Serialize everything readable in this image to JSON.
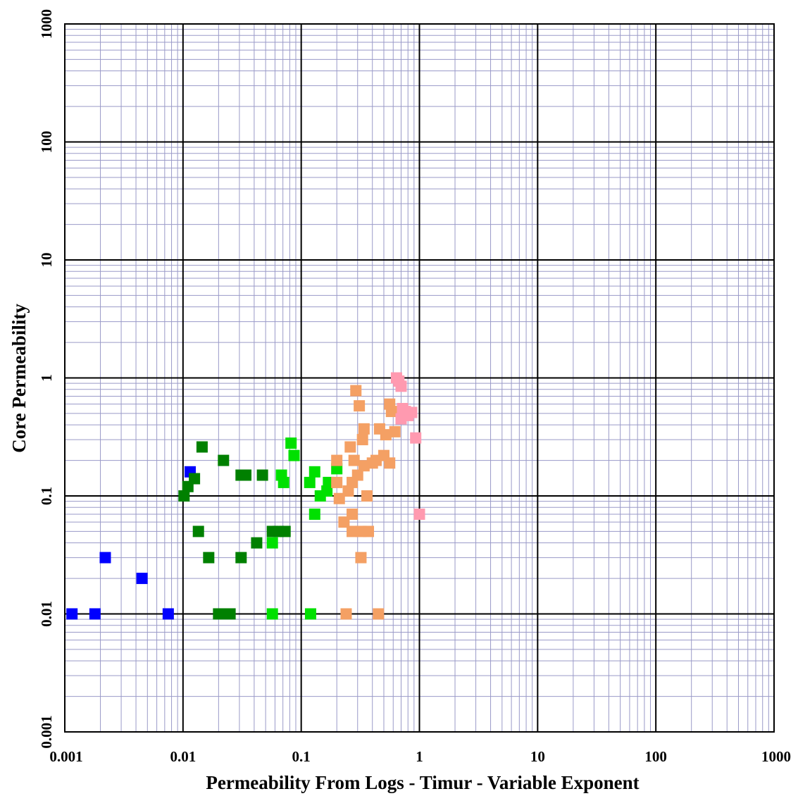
{
  "chart_data": {
    "type": "scatter",
    "title": "",
    "xlabel": "Permeability From Logs  -   Timur  - Variable Exponent",
    "ylabel": "Core Permeability",
    "x_scale": "log",
    "y_scale": "log",
    "xlim": [
      0.001,
      1000
    ],
    "ylim": [
      0.001,
      1000
    ],
    "grid": true,
    "x_ticks": [
      "0.001",
      "0.01",
      "0.1",
      "1",
      "10",
      "100",
      "1000"
    ],
    "y_ticks": [
      "0.001",
      "0.01",
      "0.1",
      "1",
      "10",
      "100",
      "1000"
    ],
    "series": [
      {
        "color": "#0000ff",
        "points": [
          [
            0.00115,
            0.01
          ],
          [
            0.0018,
            0.01
          ],
          [
            0.0022,
            0.03
          ],
          [
            0.0045,
            0.02
          ],
          [
            0.0075,
            0.01
          ],
          [
            0.0115,
            0.16
          ]
        ]
      },
      {
        "color": "#008000",
        "points": [
          [
            0.0102,
            0.1
          ],
          [
            0.011,
            0.12
          ],
          [
            0.0125,
            0.14
          ],
          [
            0.0135,
            0.05
          ],
          [
            0.0145,
            0.26
          ],
          [
            0.0165,
            0.03
          ],
          [
            0.02,
            0.01
          ],
          [
            0.022,
            0.01
          ],
          [
            0.025,
            0.01
          ],
          [
            0.022,
            0.2
          ],
          [
            0.031,
            0.15
          ],
          [
            0.034,
            0.15
          ],
          [
            0.031,
            0.03
          ],
          [
            0.047,
            0.15
          ],
          [
            0.042,
            0.04
          ],
          [
            0.057,
            0.05
          ],
          [
            0.064,
            0.05
          ],
          [
            0.073,
            0.05
          ]
        ]
      },
      {
        "color": "#00e000",
        "points": [
          [
            0.057,
            0.01
          ],
          [
            0.057,
            0.04
          ],
          [
            0.068,
            0.15
          ],
          [
            0.071,
            0.13
          ],
          [
            0.082,
            0.28
          ],
          [
            0.087,
            0.22
          ],
          [
            0.118,
            0.13
          ],
          [
            0.12,
            0.01
          ],
          [
            0.13,
            0.16
          ],
          [
            0.13,
            0.07
          ],
          [
            0.145,
            0.1
          ],
          [
            0.165,
            0.11
          ],
          [
            0.17,
            0.13
          ],
          [
            0.2,
            0.17
          ]
        ]
      },
      {
        "color": "#f4a064",
        "points": [
          [
            0.2,
            0.2
          ],
          [
            0.2,
            0.13
          ],
          [
            0.21,
            0.095
          ],
          [
            0.23,
            0.06
          ],
          [
            0.24,
            0.01
          ],
          [
            0.25,
            0.11
          ],
          [
            0.26,
            0.26
          ],
          [
            0.27,
            0.13
          ],
          [
            0.27,
            0.07
          ],
          [
            0.27,
            0.05
          ],
          [
            0.28,
            0.2
          ],
          [
            0.29,
            0.78
          ],
          [
            0.3,
            0.15
          ],
          [
            0.31,
            0.58
          ],
          [
            0.32,
            0.03
          ],
          [
            0.32,
            0.05
          ],
          [
            0.33,
            0.3
          ],
          [
            0.34,
            0.37
          ],
          [
            0.34,
            0.18
          ],
          [
            0.36,
            0.1
          ],
          [
            0.37,
            0.05
          ],
          [
            0.4,
            0.19
          ],
          [
            0.43,
            0.2
          ],
          [
            0.45,
            0.01
          ],
          [
            0.46,
            0.37
          ],
          [
            0.5,
            0.22
          ],
          [
            0.52,
            0.33
          ],
          [
            0.56,
            0.6
          ],
          [
            0.56,
            0.19
          ],
          [
            0.58,
            0.52
          ],
          [
            0.62,
            0.35
          ]
        ]
      },
      {
        "color": "#ff9ab0",
        "points": [
          [
            0.64,
            1.0
          ],
          [
            0.67,
            0.94
          ],
          [
            0.7,
            0.85
          ],
          [
            0.7,
            0.45
          ],
          [
            0.72,
            0.55
          ],
          [
            0.76,
            0.52
          ],
          [
            0.8,
            0.48
          ],
          [
            0.86,
            0.51
          ],
          [
            0.93,
            0.31
          ],
          [
            1.0,
            0.07
          ]
        ]
      }
    ]
  }
}
